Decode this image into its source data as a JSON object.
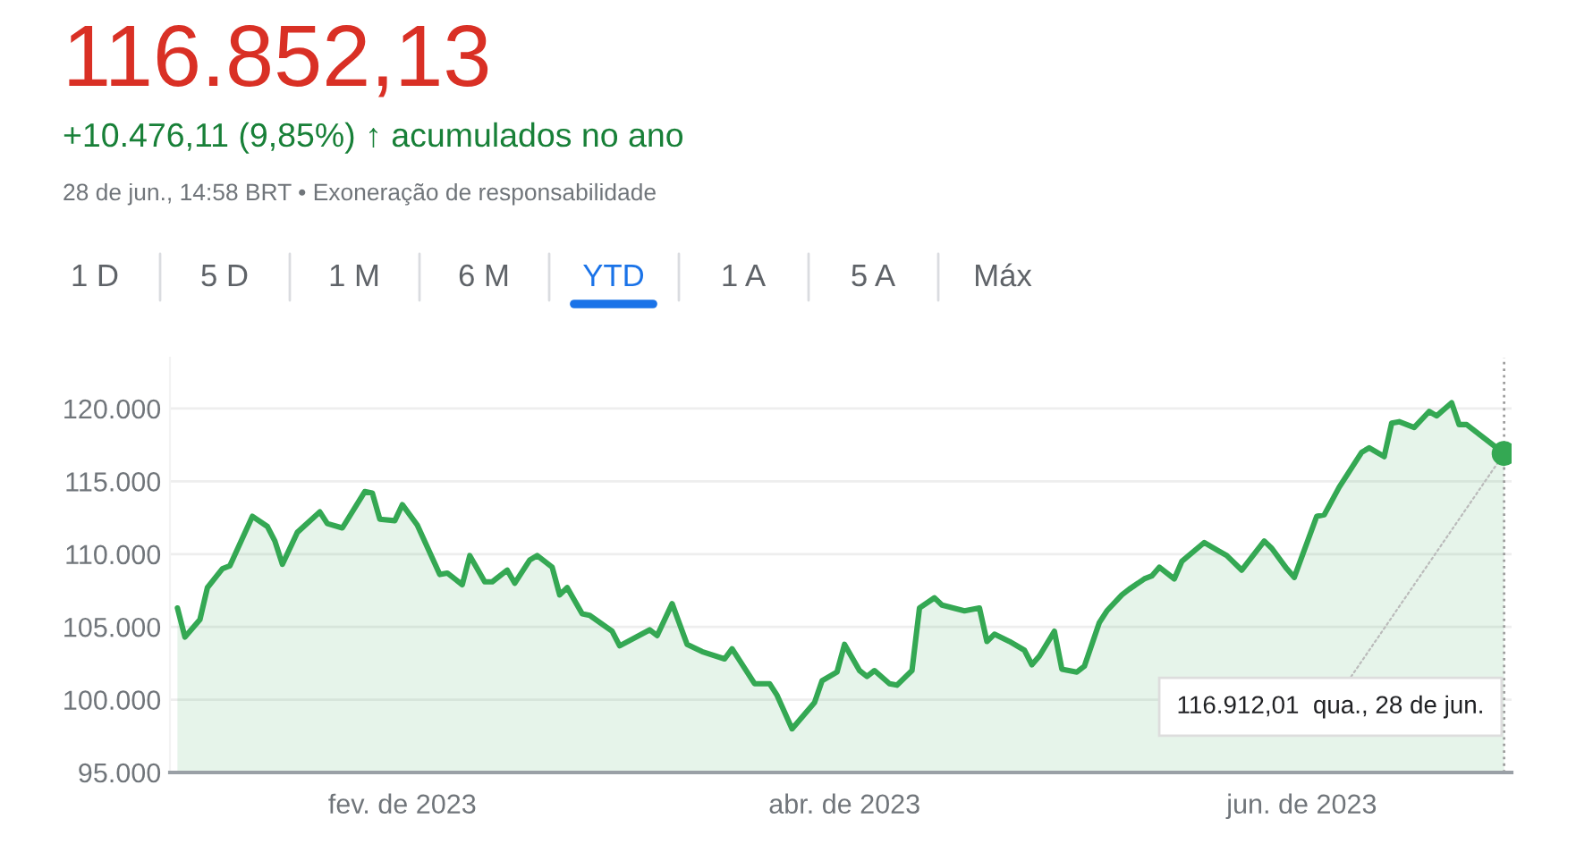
{
  "chart_data": {
    "type": "area",
    "title": "116.852,13",
    "subtitle": "+10.476,11 (9,85%) ↑ acumulados no ano",
    "annotations": [
      "28 de jun., 14:58 BRT • Exoneração de responsabilidade",
      "1 D",
      "5 D",
      "1 M",
      "6 M",
      "YTD",
      "1 A",
      "5 A",
      "Máx",
      {
        "text": "116.912,01  qua., 28 de jun.",
        "x": "2023-06-28",
        "y": 116912.01
      }
    ],
    "x": [
      "2023-01-02",
      "2023-01-03",
      "2023-01-05",
      "2023-01-06",
      "2023-01-08",
      "2023-01-09",
      "2023-01-12",
      "2023-01-14",
      "2023-01-15",
      "2023-01-16",
      "2023-01-18",
      "2023-01-21",
      "2023-01-22",
      "2023-01-24",
      "2023-01-27",
      "2023-01-28",
      "2023-01-29",
      "2023-01-31",
      "2023-02-01",
      "2023-02-03",
      "2023-02-06",
      "2023-02-07",
      "2023-02-09",
      "2023-02-10",
      "2023-02-12",
      "2023-02-13",
      "2023-02-15",
      "2023-02-16",
      "2023-02-18",
      "2023-02-19",
      "2023-02-21",
      "2023-02-22",
      "2023-02-23",
      "2023-02-25",
      "2023-02-26",
      "2023-03-01",
      "2023-03-02",
      "2023-03-06",
      "2023-03-07",
      "2023-03-09",
      "2023-03-11",
      "2023-03-13",
      "2023-03-16",
      "2023-03-17",
      "2023-03-19",
      "2023-03-20",
      "2023-03-22",
      "2023-03-23",
      "2023-03-25",
      "2023-03-28",
      "2023-03-29",
      "2023-03-31",
      "2023-04-01",
      "2023-04-03",
      "2023-04-04",
      "2023-04-05",
      "2023-04-07",
      "2023-04-08",
      "2023-04-10",
      "2023-04-11",
      "2023-04-13",
      "2023-04-14",
      "2023-04-17",
      "2023-04-19",
      "2023-04-20",
      "2023-04-21",
      "2023-04-23",
      "2023-04-25",
      "2023-04-26",
      "2023-04-27",
      "2023-04-29",
      "2023-04-30",
      "2023-05-02",
      "2023-05-03",
      "2023-05-05",
      "2023-05-06",
      "2023-05-08",
      "2023-05-09",
      "2023-05-11",
      "2023-05-12",
      "2023-05-13",
      "2023-05-15",
      "2023-05-16",
      "2023-05-19",
      "2023-05-21",
      "2023-05-22",
      "2023-05-24",
      "2023-05-27",
      "2023-05-28",
      "2023-05-30",
      "2023-05-31",
      "2023-06-03",
      "2023-06-04",
      "2023-06-06",
      "2023-06-07",
      "2023-06-09",
      "2023-06-10",
      "2023-06-12",
      "2023-06-13",
      "2023-06-14",
      "2023-06-16",
      "2023-06-18",
      "2023-06-19",
      "2023-06-21",
      "2023-06-22",
      "2023-06-23",
      "2023-06-28"
    ],
    "series": [
      {
        "color": "#34a853",
        "values": [
          106300,
          104300,
          105500,
          107700,
          109000,
          109200,
          112600,
          111900,
          110900,
          109300,
          111500,
          112900,
          112100,
          111800,
          114300,
          114200,
          112400,
          112300,
          113400,
          112000,
          108600,
          108700,
          107900,
          109900,
          108100,
          108100,
          108900,
          108000,
          109600,
          109900,
          109100,
          107200,
          107700,
          105900,
          105800,
          104700,
          103700,
          104800,
          104400,
          106600,
          103800,
          103300,
          102800,
          103500,
          101900,
          101100,
          101100,
          100300,
          98000,
          99800,
          101300,
          101900,
          103800,
          102000,
          101600,
          102000,
          101100,
          101000,
          102000,
          106300,
          107000,
          106500,
          106100,
          106300,
          104000,
          104500,
          104000,
          103400,
          102400,
          103000,
          104700,
          102100,
          101900,
          102300,
          105300,
          106100,
          107200,
          107600,
          108300,
          108500,
          109100,
          108300,
          109500,
          110800,
          110200,
          109900,
          108900,
          110900,
          110400,
          109000,
          108400,
          112600,
          112700,
          114600,
          115400,
          117000,
          117300,
          116700,
          119000,
          119100,
          118700,
          119800,
          119500,
          120400,
          118900,
          118900,
          116912.01
        ]
      }
    ],
    "xlim": [
      "2023-01-01",
      "2023-06-29"
    ],
    "xticks": [
      {
        "value": "2023-02-01",
        "label": "fev. de 2023"
      },
      {
        "value": "2023-04-01",
        "label": "abr. de 2023"
      },
      {
        "value": "2023-06-01",
        "label": "jun. de 2023"
      }
    ],
    "ylim": [
      95000,
      123500
    ],
    "yticks": [
      {
        "value": 95000,
        "label": "95.000"
      },
      {
        "value": 100000,
        "label": "100.000"
      },
      {
        "value": 105000,
        "label": "105.000"
      },
      {
        "value": 110000,
        "label": "110.000"
      },
      {
        "value": 115000,
        "label": "115.000"
      },
      {
        "value": 120000,
        "label": "120.000"
      }
    ],
    "ref_lines": [
      {
        "axis": "x",
        "value": "2023-06-28",
        "label": null,
        "color": "#9e9e9e",
        "line_style": "dotted"
      }
    ],
    "grid": "y",
    "legend": false
  }
}
